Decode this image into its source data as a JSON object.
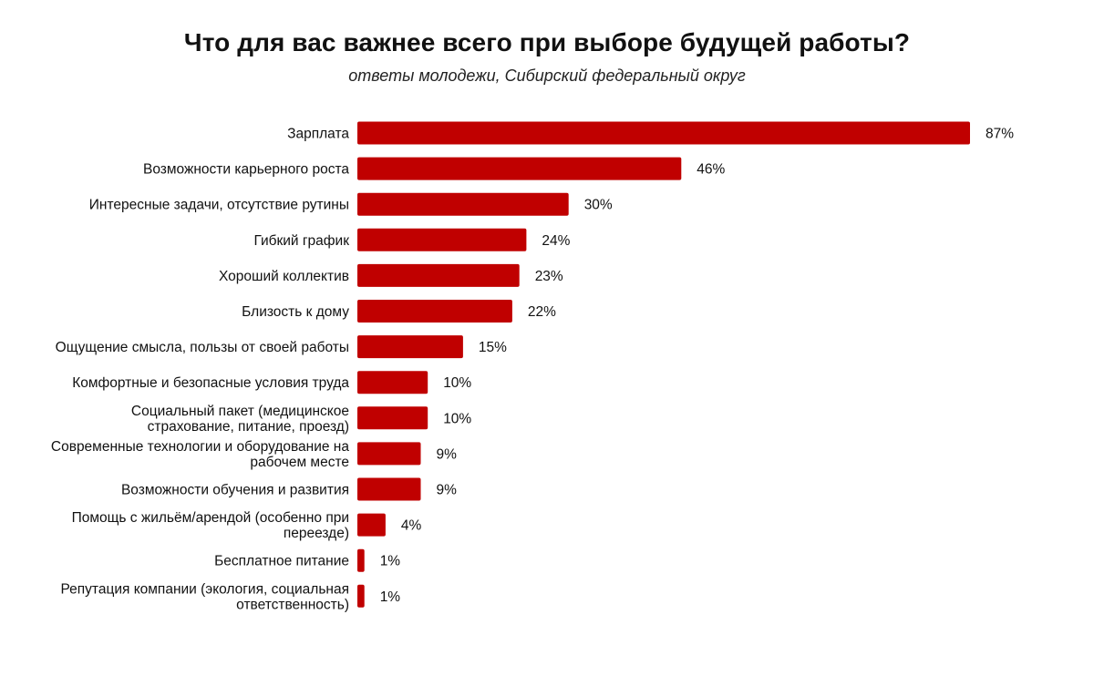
{
  "chart_data": {
    "type": "bar",
    "orientation": "horizontal",
    "title": "Что для вас важнее всего при выборе будущей работы?",
    "subtitle": "ответы молодежи, Сибирский федеральный округ",
    "categories": [
      [
        "Зарплата"
      ],
      [
        "Возможности карьерного роста"
      ],
      [
        "Интересные задачи, отсутствие рутины"
      ],
      [
        "Гибкий график"
      ],
      [
        "Хороший коллектив"
      ],
      [
        "Близость к дому"
      ],
      [
        "Ощущение смысла, пользы от своей работы"
      ],
      [
        "Комфортные и безопасные условия труда"
      ],
      [
        "Социальный пакет (медицинское",
        "страхование, питание, проезд)"
      ],
      [
        "Современные технологии и оборудование на",
        "рабочем месте"
      ],
      [
        "Возможности обучения и развития"
      ],
      [
        "Помощь с жильём/арендой (особенно при",
        "переезде)"
      ],
      [
        "Бесплатное питание"
      ],
      [
        "Репутация компании (экология, социальная",
        "ответственность)"
      ]
    ],
    "values": [
      87,
      46,
      30,
      24,
      23,
      22,
      15,
      10,
      10,
      9,
      9,
      4,
      1,
      1
    ],
    "value_labels": [
      "87%",
      "46%",
      "30%",
      "24%",
      "23%",
      "22%",
      "15%",
      "10%",
      "10%",
      "9%",
      "9%",
      "4%",
      "1%",
      "1%"
    ],
    "xlim": [
      0,
      87
    ],
    "bar_color": "#c00000",
    "grid": false,
    "legend": "none",
    "xlabel": "",
    "ylabel": ""
  }
}
